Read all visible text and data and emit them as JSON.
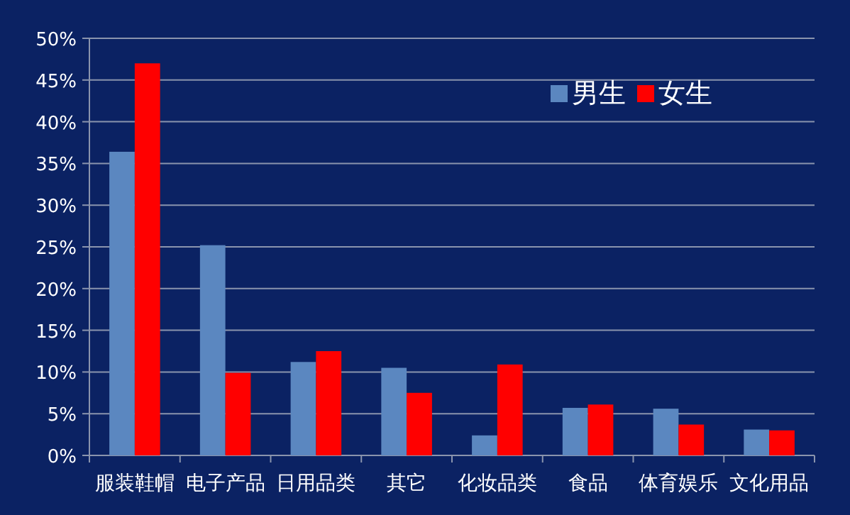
{
  "chart_data": {
    "type": "bar",
    "categories": [
      "服装鞋帽",
      "电子产品",
      "日用品类",
      "其它",
      "化妆品类",
      "食品",
      "体育娱乐",
      "文化用品"
    ],
    "series": [
      {
        "name": "男生",
        "color": "#5b87c0",
        "values": [
          36.4,
          25.2,
          11.2,
          10.5,
          2.4,
          5.7,
          5.6,
          3.1
        ]
      },
      {
        "name": "女生",
        "color": "#ff0000",
        "values": [
          47.0,
          9.9,
          12.5,
          7.5,
          10.9,
          6.1,
          3.7,
          3.0
        ]
      }
    ],
    "ylim": [
      0,
      50
    ],
    "yticks": [
      {
        "value": 0,
        "label": "0%"
      },
      {
        "value": 5,
        "label": "5%"
      },
      {
        "value": 10,
        "label": "10%"
      },
      {
        "value": 15,
        "label": "15%"
      },
      {
        "value": 20,
        "label": "20%"
      },
      {
        "value": 25,
        "label": "25%"
      },
      {
        "value": 30,
        "label": "30%"
      },
      {
        "value": 35,
        "label": "35%"
      },
      {
        "value": 40,
        "label": "40%"
      },
      {
        "value": 45,
        "label": "45%"
      },
      {
        "value": 50,
        "label": "50%"
      }
    ],
    "grid": "y",
    "legend": "top right"
  }
}
